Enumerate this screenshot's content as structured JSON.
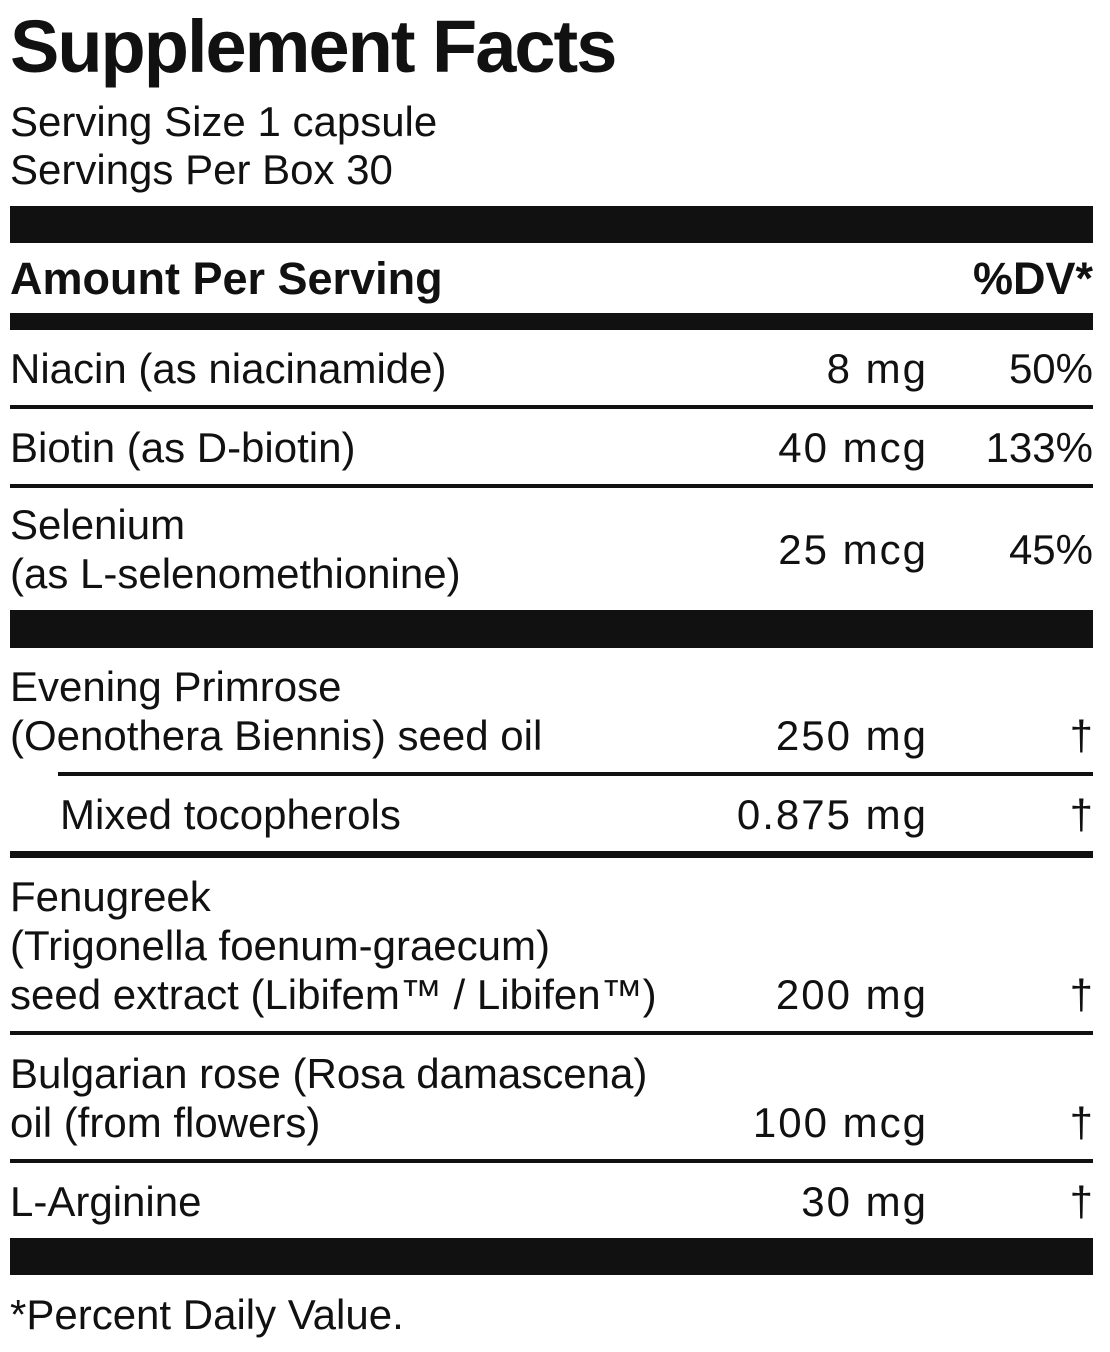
{
  "colors": {
    "ink": "#111111",
    "background": "#ffffff"
  },
  "label": {
    "title": "Supplement Facts",
    "serving_size": "Serving Size 1 capsule",
    "servings_per_box": "Servings Per Box 30",
    "columns": {
      "left_header": "Amount Per Serving",
      "right_header": "%DV*"
    },
    "sections": [
      {
        "rows": [
          {
            "name_lines": [
              "Niacin (as niacinamide)"
            ],
            "amount": "8 mg",
            "dv": "50%",
            "divider": "thin"
          },
          {
            "name_lines": [
              "Biotin (as D-biotin)"
            ],
            "amount": "40 mcg",
            "dv": "133%",
            "divider": "thin"
          },
          {
            "name_lines": [
              "Selenium",
              "(as L-selenomethionine)"
            ],
            "amount": "25 mcg",
            "dv": "45%",
            "valign": "center",
            "divider": "none"
          }
        ]
      },
      {
        "rows": [
          {
            "name_lines": [
              "Evening Primrose",
              "(Oenothera Biennis) seed oil"
            ],
            "amount": "250 mg",
            "dv": "†",
            "divider": "thin-indent"
          },
          {
            "name_lines": [
              "Mixed tocopherols"
            ],
            "indent": true,
            "amount": "0.875 mg",
            "dv": "†",
            "divider": "medium"
          },
          {
            "name_lines": [
              "Fenugreek",
              "(Trigonella foenum-graecum)",
              "seed extract (Libifem™ / Libifen™)"
            ],
            "amount": "200 mg",
            "dv": "†",
            "divider": "thin"
          },
          {
            "name_lines": [
              "Bulgarian rose (Rosa damascena)",
              "oil (from flowers)"
            ],
            "amount": "100 mcg",
            "dv": "†",
            "divider": "thin"
          },
          {
            "name_lines": [
              "L-Arginine"
            ],
            "amount": "30 mg",
            "dv": "†",
            "divider": "none"
          }
        ]
      }
    ],
    "footnote": "*Percent Daily Value."
  }
}
